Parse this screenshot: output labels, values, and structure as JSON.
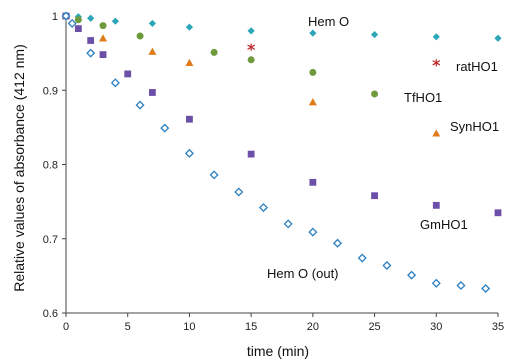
{
  "chart_data": {
    "type": "scatter",
    "title": "",
    "xlabel": "time (min)",
    "ylabel": "Relative values of absorbance (412 nm)",
    "xlim": [
      0,
      35
    ],
    "ylim": [
      0.6,
      1.0
    ],
    "xticks": [
      "0",
      "5",
      "10",
      "15",
      "20",
      "25",
      "30",
      "35"
    ],
    "yticks": [
      "0.6",
      "0.7",
      "0.8",
      "0.9",
      "1"
    ],
    "grid": false,
    "legend": "inline labels",
    "series": [
      {
        "name": "Hem O",
        "marker": "diamond-filled",
        "color": "#2aa6b8",
        "x": [
          0,
          1,
          2,
          4,
          7,
          10,
          15,
          20,
          25,
          30,
          35
        ],
        "y": [
          1.0,
          0.999,
          0.997,
          0.993,
          0.99,
          0.985,
          0.98,
          0.977,
          0.975,
          0.972,
          0.97
        ]
      },
      {
        "name": "ratHO1",
        "marker": "asterisk",
        "color": "#c0282a",
        "x": [
          0,
          15,
          30
        ],
        "y": [
          1.0,
          0.958,
          0.937
        ]
      },
      {
        "name": "TfHO1",
        "marker": "circle",
        "color": "#6f9a3b",
        "x": [
          0,
          1,
          3,
          6,
          12,
          15,
          20,
          25
        ],
        "y": [
          1.0,
          0.995,
          0.987,
          0.973,
          0.951,
          0.941,
          0.924,
          0.895
        ]
      },
      {
        "name": "SynHO1",
        "marker": "triangle",
        "color": "#e07b1a",
        "x": [
          0,
          3,
          7,
          10,
          20,
          30
        ],
        "y": [
          1.0,
          0.97,
          0.952,
          0.937,
          0.884,
          0.842
        ]
      },
      {
        "name": "GmHO1",
        "marker": "square",
        "color": "#6b4fa8",
        "x": [
          0,
          1,
          2,
          3,
          5,
          7,
          10,
          15,
          20,
          25,
          30,
          35
        ],
        "y": [
          1.0,
          0.983,
          0.967,
          0.948,
          0.922,
          0.897,
          0.861,
          0.814,
          0.776,
          0.758,
          0.745,
          0.735
        ]
      },
      {
        "name": "Hem O (out)",
        "marker": "diamond-open",
        "color": "#2a7fc1",
        "x": [
          0,
          0.5,
          2,
          4,
          6,
          8,
          10,
          12,
          14,
          16,
          18,
          20,
          22,
          24,
          26,
          28,
          30,
          32,
          34
        ],
        "y": [
          1.0,
          0.99,
          0.95,
          0.91,
          0.88,
          0.849,
          0.815,
          0.786,
          0.763,
          0.742,
          0.72,
          0.709,
          0.694,
          0.674,
          0.664,
          0.651,
          0.64,
          0.637,
          0.633
        ]
      }
    ]
  }
}
